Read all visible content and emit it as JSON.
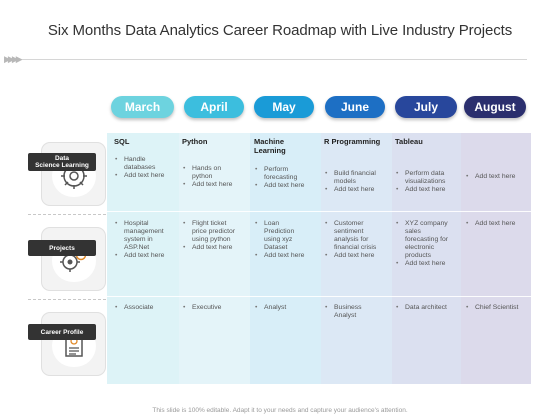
{
  "title": "Six Months Data Analytics Career Roadmap with Live Industry Projects",
  "months": [
    {
      "label": "March",
      "color": "#6dd3df"
    },
    {
      "label": "April",
      "color": "#3cbede"
    },
    {
      "label": "May",
      "color": "#1a9bd7"
    },
    {
      "label": "June",
      "color": "#1d6fc4"
    },
    {
      "label": "July",
      "color": "#28479c"
    },
    {
      "label": "August",
      "color": "#2b2f6e"
    }
  ],
  "rows": {
    "learning": {
      "label": "Data\nScience Learning",
      "icon": "brain-gear-icon"
    },
    "projects": {
      "label": "Projects",
      "icon": "gears-head-icon"
    },
    "career": {
      "label": "Career Profile",
      "icon": "resume-document-icon"
    }
  },
  "headers": [
    "SQL",
    "Python",
    "Machine\nLearning",
    "R Programming",
    "Tableau",
    ""
  ],
  "learning_cells": [
    [
      "Handle databases",
      "Add text here"
    ],
    [
      "Hands on python",
      "Add text here"
    ],
    [
      "Perform forecasting",
      "Add text here"
    ],
    [
      "Build financial models",
      "Add text here"
    ],
    [
      "Perform data visualizations",
      "Add text here"
    ],
    [
      "Add text here"
    ]
  ],
  "project_cells": [
    [
      "Hospital management system in ASP.Net",
      "Add text here"
    ],
    [
      "Flight ticket price predictor using python",
      "Add text here"
    ],
    [
      "Loan Prediction using xyz Dataset",
      "Add text here"
    ],
    [
      "Customer sentiment analysis for financial crisis",
      "Add text here"
    ],
    [
      "XYZ company sales forecasting for electronic products",
      "Add text here"
    ],
    [
      "Add text here"
    ]
  ],
  "career_cells": [
    [
      "Associate"
    ],
    [
      "Executive"
    ],
    [
      "Analyst"
    ],
    [
      "Business Analyst"
    ],
    [
      "Data architect"
    ],
    [
      "Chief Scientist"
    ]
  ],
  "footer": "This slide is 100% editable. Adapt it to your needs and capture your audience's attention."
}
